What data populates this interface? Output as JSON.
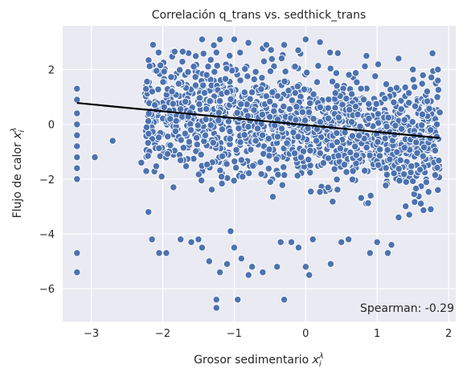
{
  "chart_data": {
    "type": "scatter",
    "title": "Correlación q_trans vs. sedthick_trans",
    "xlabel": "Grosor sedimentario",
    "xlabel_symbol": "x",
    "xlabel_sup": "λ",
    "xlabel_sub": "i",
    "ylabel": "Flujo de calor",
    "ylabel_symbol": "x",
    "ylabel_sup": "λ",
    "ylabel_sub": "i",
    "xlim": [
      -3.4,
      2.1
    ],
    "ylim": [
      -7.2,
      3.6
    ],
    "x_ticks": [
      -3,
      -2,
      -1,
      0,
      1,
      2
    ],
    "x_tick_labels": [
      "−3",
      "−2",
      "−1",
      "0",
      "1",
      "2"
    ],
    "y_ticks": [
      -6,
      -4,
      -2,
      0,
      2
    ],
    "y_tick_labels": [
      "−6",
      "−4",
      "−2",
      "0",
      "2"
    ],
    "grid": true,
    "background": "#eaeaf2",
    "point_color": "#4c72b0",
    "regression_line": {
      "x": [
        -3.2,
        1.88
      ],
      "y": [
        0.78,
        -0.5
      ],
      "color": "#000000"
    },
    "annotation": {
      "text": "Spearman: -0.29",
      "position": "bottom-right"
    },
    "sample_points": [
      {
        "x": -3.2,
        "y": 1.3
      },
      {
        "x": -3.2,
        "y": 0.9
      },
      {
        "x": -3.2,
        "y": 0.4
      },
      {
        "x": -3.2,
        "y": 0.0
      },
      {
        "x": -3.2,
        "y": -0.4
      },
      {
        "x": -3.2,
        "y": -0.8
      },
      {
        "x": -3.2,
        "y": -1.2
      },
      {
        "x": -3.2,
        "y": -1.6
      },
      {
        "x": -3.2,
        "y": -2.0
      },
      {
        "x": -3.2,
        "y": -4.7
      },
      {
        "x": -3.2,
        "y": -5.4
      },
      {
        "x": -2.95,
        "y": -1.2
      },
      {
        "x": -2.7,
        "y": -0.6
      },
      {
        "x": -2.3,
        "y": -1.4
      },
      {
        "x": -2.2,
        "y": -3.2
      },
      {
        "x": -2.15,
        "y": -4.2
      },
      {
        "x": -2.05,
        "y": -4.7
      },
      {
        "x": -1.95,
        "y": -4.7
      },
      {
        "x": -1.85,
        "y": -2.3
      },
      {
        "x": -1.75,
        "y": -4.2
      },
      {
        "x": -1.6,
        "y": -4.3
      },
      {
        "x": -1.5,
        "y": -4.2
      },
      {
        "x": -1.45,
        "y": -4.5
      },
      {
        "x": -1.35,
        "y": -5.0
      },
      {
        "x": -1.25,
        "y": -6.4
      },
      {
        "x": -1.25,
        "y": -6.7
      },
      {
        "x": -1.2,
        "y": -5.4
      },
      {
        "x": -1.1,
        "y": -5.1
      },
      {
        "x": -1.05,
        "y": -3.9
      },
      {
        "x": -1.0,
        "y": -4.5
      },
      {
        "x": -0.95,
        "y": -6.4
      },
      {
        "x": -0.9,
        "y": -4.9
      },
      {
        "x": -0.8,
        "y": -5.5
      },
      {
        "x": -0.75,
        "y": -5.2
      },
      {
        "x": -0.6,
        "y": -5.4
      },
      {
        "x": -0.4,
        "y": -5.2
      },
      {
        "x": -0.35,
        "y": -4.3
      },
      {
        "x": -0.3,
        "y": -6.4
      },
      {
        "x": -0.2,
        "y": -4.3
      },
      {
        "x": -0.1,
        "y": -4.5
      },
      {
        "x": 0.0,
        "y": -5.2
      },
      {
        "x": 0.05,
        "y": -5.5
      },
      {
        "x": 0.1,
        "y": -4.2
      },
      {
        "x": 0.35,
        "y": -5.1
      },
      {
        "x": 0.5,
        "y": -4.3
      },
      {
        "x": 0.6,
        "y": -4.2
      },
      {
        "x": 0.9,
        "y": -4.7
      },
      {
        "x": 1.0,
        "y": -4.3
      },
      {
        "x": 1.15,
        "y": -4.7
      },
      {
        "x": 1.2,
        "y": -4.4
      },
      {
        "x": 1.3,
        "y": -3.4
      },
      {
        "x": 1.45,
        "y": -3.3
      },
      {
        "x": 1.75,
        "y": -3.1
      },
      {
        "x": 1.85,
        "y": -2.4
      },
      {
        "x": -1.45,
        "y": 3.1
      },
      {
        "x": -1.2,
        "y": 3.1
      },
      {
        "x": -1.0,
        "y": 3.1
      },
      {
        "x": -0.55,
        "y": 2.9
      },
      {
        "x": -0.3,
        "y": 2.9
      },
      {
        "x": 0.2,
        "y": 3.0
      },
      {
        "x": 0.0,
        "y": 3.1
      },
      {
        "x": 0.45,
        "y": 2.6
      },
      {
        "x": 0.85,
        "y": 2.5
      },
      {
        "x": 1.3,
        "y": 2.4
      },
      {
        "x": 1.5,
        "y": 2.0
      },
      {
        "x": 1.85,
        "y": 2.0
      },
      {
        "x": 1.85,
        "y": 1.6
      },
      {
        "x": 1.7,
        "y": 1.2
      }
    ]
  }
}
